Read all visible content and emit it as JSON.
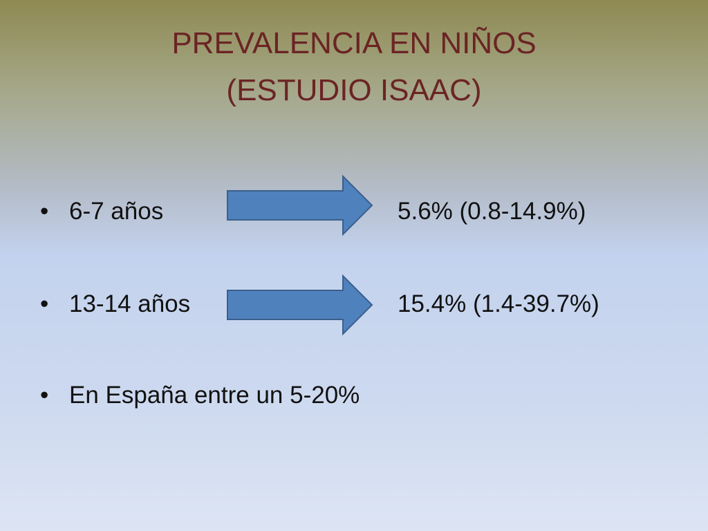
{
  "title": [
    "PREVALENCIA EN NIÑOS",
    "(ESTUDIO ISAAC)"
  ],
  "items": [
    {
      "label": "6-7 años",
      "result": "5.6% (0.8-14.9%)"
    },
    {
      "label": "13-14 años",
      "result": "15.4% (1.4-39.7%)"
    },
    {
      "label": "En España entre un 5-20%"
    }
  ]
}
